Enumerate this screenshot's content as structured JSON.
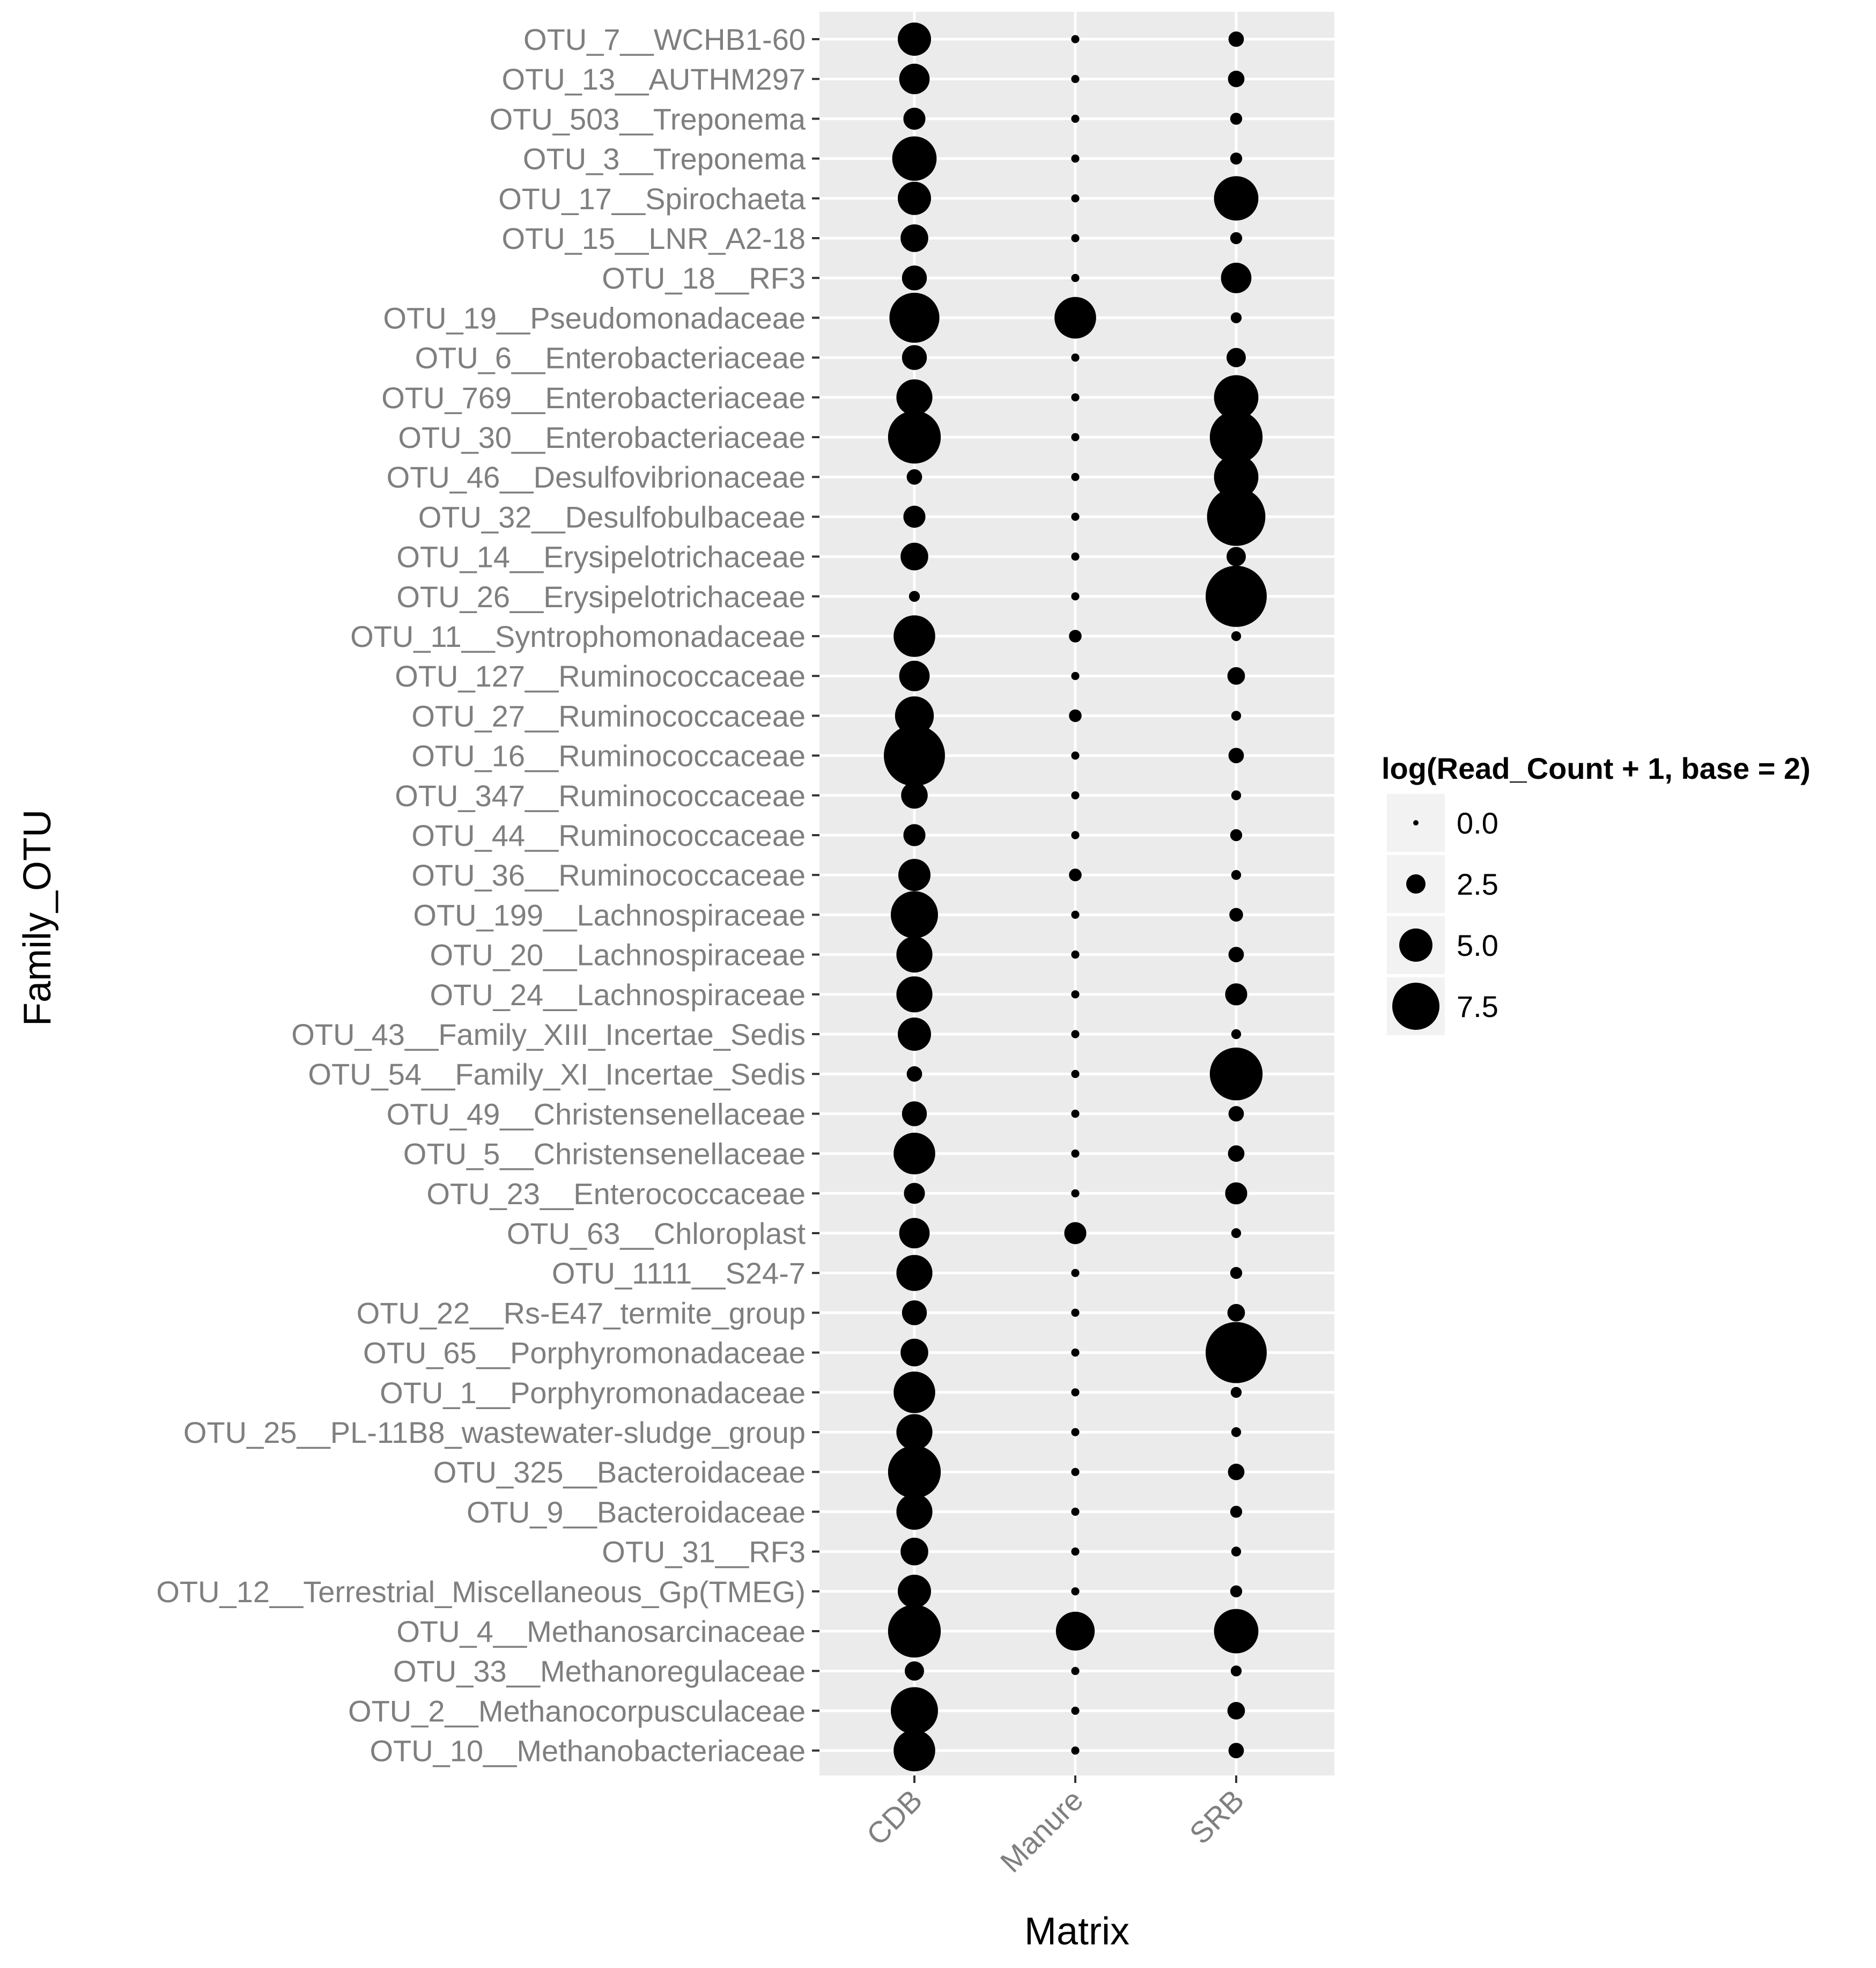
{
  "chart_data": {
    "type": "scatter",
    "xlabel": "Matrix",
    "ylabel": "Family_OTU",
    "x_categories": [
      "CDB",
      "Manure",
      "SRB"
    ],
    "y_categories": [
      "OTU_7__WCHB1-60",
      "OTU_13__AUTHM297",
      "OTU_503__Treponema",
      "OTU_3__Treponema",
      "OTU_17__Spirochaeta",
      "OTU_15__LNR_A2-18",
      "OTU_18__RF3",
      "OTU_19__Pseudomonadaceae",
      "OTU_6__Enterobacteriaceae",
      "OTU_769__Enterobacteriaceae",
      "OTU_30__Enterobacteriaceae",
      "OTU_46__Desulfovibrionaceae",
      "OTU_32__Desulfobulbaceae",
      "OTU_14__Erysipelotrichaceae",
      "OTU_26__Erysipelotrichaceae",
      "OTU_11__Syntrophomonadaceae",
      "OTU_127__Ruminococcaceae",
      "OTU_27__Ruminococcaceae",
      "OTU_16__Ruminococcaceae",
      "OTU_347__Ruminococcaceae",
      "OTU_44__Ruminococcaceae",
      "OTU_36__Ruminococcaceae",
      "OTU_199__Lachnospiraceae",
      "OTU_20__Lachnospiraceae",
      "OTU_24__Lachnospiraceae",
      "OTU_43__Family_XIII_Incertae_Sedis",
      "OTU_54__Family_XI_Incertae_Sedis",
      "OTU_49__Christensenellaceae",
      "OTU_5__Christensenellaceae",
      "OTU_23__Enterococcaceae",
      "OTU_63__Chloroplast",
      "OTU_1111__S24-7",
      "OTU_22__Rs-E47_termite_group",
      "OTU_65__Porphyromonadaceae",
      "OTU_1__Porphyromonadaceae",
      "OTU_25__PL-11B8_wastewater-sludge_group",
      "OTU_325__Bacteroidaceae",
      "OTU_9__Bacteroidaceae",
      "OTU_31__RF3",
      "OTU_12__Terrestrial_Miscellaneous_Gp(TMEG)",
      "OTU_4__Methanosarcinaceae",
      "OTU_33__Methanoregulaceae",
      "OTU_2__Methanocorpusculaceae",
      "OTU_10__Methanobacteriaceae"
    ],
    "size_values": {
      "CDB": [
        5.0,
        4.5,
        3.0,
        7.0,
        5.0,
        4.0,
        3.5,
        8.0,
        3.5,
        5.5,
        8.5,
        1.8,
        3.0,
        4.0,
        1.0,
        6.5,
        4.5,
        6.0,
        10.0,
        3.8,
        3.0,
        4.8,
        7.5,
        5.5,
        5.5,
        5.0,
        1.8,
        3.5,
        6.5,
        2.8,
        4.5,
        5.5,
        3.5,
        4.0,
        6.5,
        5.5,
        8.5,
        5.5,
        4.0,
        5.0,
        8.5,
        2.5,
        7.5,
        6.5
      ],
      "Manure": [
        0.5,
        0.5,
        0.5,
        0.5,
        0.5,
        0.5,
        0.5,
        6.5,
        0.5,
        0.5,
        0.5,
        0.5,
        0.5,
        0.5,
        0.5,
        1.3,
        0.5,
        1.3,
        0.5,
        0.5,
        0.5,
        1.3,
        0.5,
        0.5,
        0.5,
        0.5,
        0.5,
        0.5,
        0.5,
        0.5,
        3.0,
        0.5,
        0.5,
        0.5,
        0.5,
        0.5,
        0.5,
        0.5,
        0.5,
        0.5,
        6.0,
        0.5,
        0.5,
        0.5
      ],
      "SRB": [
        1.8,
        2.0,
        1.2,
        1.2,
        7.0,
        1.2,
        4.5,
        1.0,
        2.5,
        7.0,
        8.5,
        7.0,
        9.5,
        2.5,
        10.0,
        0.8,
        2.2,
        0.8,
        1.8,
        0.8,
        1.2,
        0.8,
        1.5,
        1.8,
        3.0,
        0.8,
        8.5,
        1.8,
        2.0,
        3.0,
        0.8,
        1.2,
        2.2,
        10.0,
        1.0,
        0.8,
        2.0,
        1.2,
        0.8,
        1.2,
        7.0,
        1.0,
        2.2,
        1.8
      ]
    },
    "legend": {
      "title": "log(Read_Count + 1, base = 2)",
      "position": "right",
      "entries": [
        {
          "label": "0.0",
          "value": 0.0
        },
        {
          "label": "2.5",
          "value": 2.5
        },
        {
          "label": "5.0",
          "value": 5.0
        },
        {
          "label": "7.5",
          "value": 7.5
        }
      ]
    },
    "size_range": [
      0,
      10
    ],
    "point_color": "#000000",
    "panel_background": "#ebebeb",
    "grid_color": "#ffffff",
    "grid": true
  }
}
